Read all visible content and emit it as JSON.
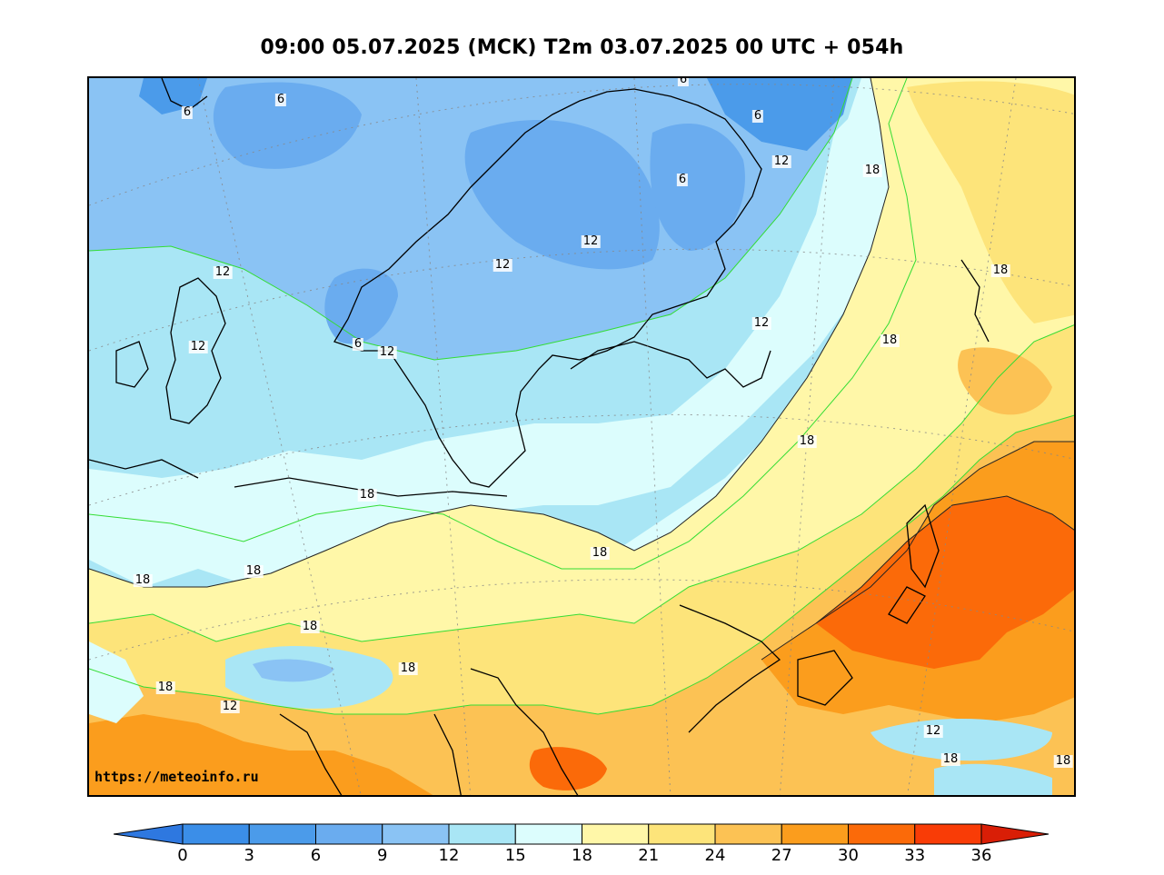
{
  "title": "09:00 05.07.2025 (MCK) T2m 03.07.2025 00 UTC + 054h",
  "watermark": "https://meteoinfo.ru",
  "map": {
    "variable": "T2m",
    "contour_labels": [
      {
        "text": "6"
      },
      {
        "text": "6"
      },
      {
        "text": "6"
      },
      {
        "text": "6"
      },
      {
        "text": "6"
      },
      {
        "text": "6"
      },
      {
        "text": "12"
      },
      {
        "text": "12"
      },
      {
        "text": "12"
      },
      {
        "text": "12"
      },
      {
        "text": "12"
      },
      {
        "text": "12"
      },
      {
        "text": "12"
      },
      {
        "text": "12"
      },
      {
        "text": "12"
      },
      {
        "text": "12"
      },
      {
        "text": "18"
      },
      {
        "text": "18"
      },
      {
        "text": "18"
      },
      {
        "text": "18"
      },
      {
        "text": "18"
      },
      {
        "text": "18"
      },
      {
        "text": "18"
      },
      {
        "text": "18"
      },
      {
        "text": "18"
      },
      {
        "text": "18"
      },
      {
        "text": "18"
      },
      {
        "text": "18"
      },
      {
        "text": "18"
      }
    ]
  },
  "colorbar": {
    "ticks": [
      "0",
      "3",
      "6",
      "9",
      "12",
      "15",
      "18",
      "21",
      "24",
      "27",
      "30",
      "33",
      "36"
    ],
    "colors": [
      "#3b8ee8",
      "#4b9bea",
      "#6aacef",
      "#8ac3f4",
      "#a9e6f5",
      "#dcfdfd",
      "#fff7a8",
      "#fde47a",
      "#fcc254",
      "#fb9d1d",
      "#fb6a09",
      "#f93c06"
    ],
    "under_color": "#2e78e0",
    "over_color": "#d91e06"
  }
}
